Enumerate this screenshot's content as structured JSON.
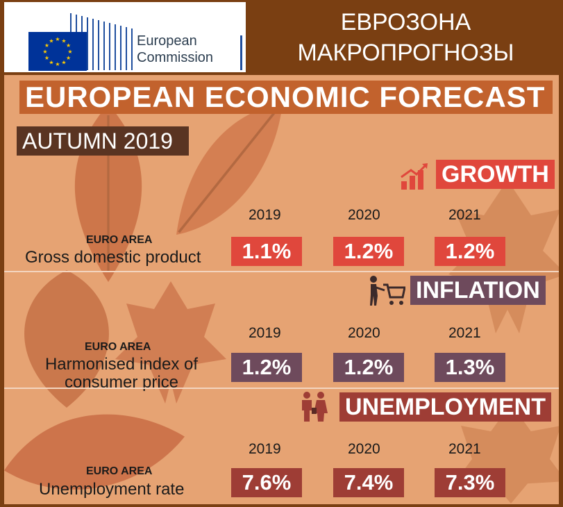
{
  "logo": {
    "line1": "European",
    "line2": "Commission",
    "flag_color": "#003399",
    "star_color": "#ffcc00",
    "brand_color": "#1f4e9e"
  },
  "header": {
    "title_line1": "ЕВРОЗОНА",
    "title_line2": "МАКРОПРОГНОЗЫ"
  },
  "infographic": {
    "title": "EUROPEAN ECONOMIC FORECAST",
    "season": "AUTUMN 2019",
    "sections": [
      {
        "label": "GROWTH",
        "icon": "growth-chart-icon",
        "color": "#e0473c",
        "years": [
          "2019",
          "2020",
          "2021"
        ],
        "region": "EURO AREA",
        "indicator_line1": "Gross domestic product",
        "indicator_line2": "",
        "values": [
          "1.1%",
          "1.2%",
          "1.2%"
        ]
      },
      {
        "label": "INFLATION",
        "icon": "shopping-cart-person-icon",
        "color": "#6e4a5c",
        "years": [
          "2019",
          "2020",
          "2021"
        ],
        "region": "EURO AREA",
        "indicator_line1": "Harmonised index of",
        "indicator_line2": "consumer price",
        "values": [
          "1.2%",
          "1.2%",
          "1.3%"
        ]
      },
      {
        "label": "UNEMPLOYMENT",
        "icon": "people-icon",
        "color": "#9e3d35",
        "years": [
          "2019",
          "2020",
          "2021"
        ],
        "region": "EURO AREA",
        "indicator_line1": "Unemployment rate",
        "indicator_line2": "",
        "values": [
          "7.6%",
          "7.4%",
          "7.3%"
        ]
      }
    ]
  }
}
